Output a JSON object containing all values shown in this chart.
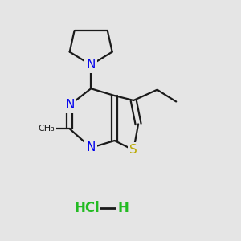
{
  "background_color": "#e5e5e5",
  "bond_color": "#1a1a1a",
  "bond_lw": 1.6,
  "atom_colors": {
    "N": "#0000ee",
    "S": "#bbaa00",
    "Cl": "#22bb22",
    "H_label": "#22bb22",
    "C": "#1a1a1a"
  },
  "figsize": [
    3.0,
    3.0
  ],
  "dpi": 100,
  "xlim": [
    0,
    10
  ],
  "ylim": [
    0,
    10
  ]
}
